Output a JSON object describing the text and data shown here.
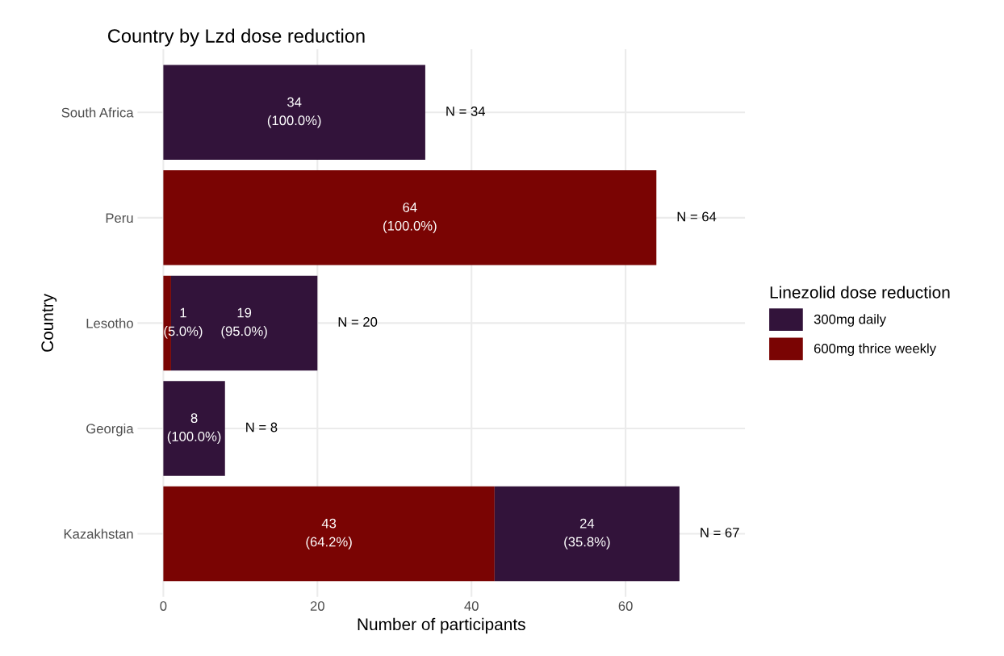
{
  "chart_data": {
    "type": "bar",
    "title": "Country by Lzd dose reduction",
    "xlabel": "Number of participants",
    "ylabel": "Country",
    "legend_title": "Linezolid dose reduction",
    "orientation": "horizontal",
    "stacked": true,
    "categories": [
      "South Africa",
      "Peru",
      "Lesotho",
      "Georgia",
      "Kazakhstan"
    ],
    "series": [
      {
        "name": "600mg thrice weekly",
        "color": "#7a0403",
        "values": [
          null,
          64,
          1,
          null,
          43
        ],
        "value_labels": [
          null,
          "64\n(100.0%)",
          "1\n(5.0%)",
          null,
          "43\n(64.2%)"
        ]
      },
      {
        "name": "300mg daily",
        "color": "#32133a",
        "values": [
          34,
          null,
          19,
          8,
          24
        ],
        "value_labels": [
          "34\n(100.0%)",
          null,
          "19\n(95.0%)",
          "8\n(100.0%)",
          "24\n(35.8%)"
        ]
      }
    ],
    "totals": [
      "N = 34",
      "N = 64",
      "N = 20",
      "N = 8",
      "N = 67"
    ],
    "xlim": [
      -3.35,
      75.5
    ],
    "xticks": [
      0,
      20,
      40,
      60
    ],
    "grid": true,
    "legend": "right"
  }
}
